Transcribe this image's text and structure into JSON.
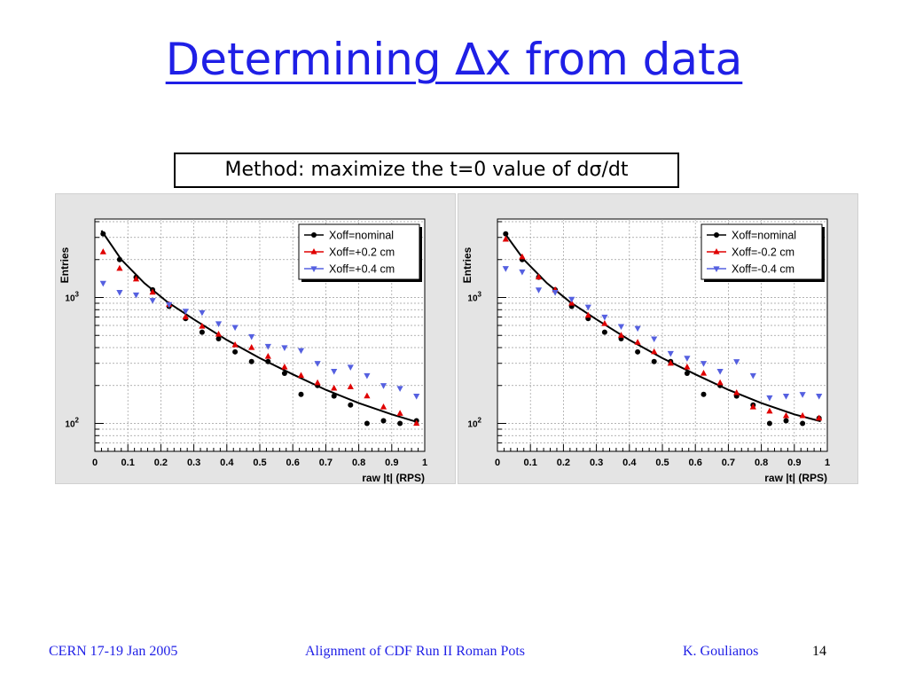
{
  "slide": {
    "title": "Determining ∆x from data",
    "method_box": "Method: maximize the t=0 value of dσ/dt"
  },
  "footer": {
    "left": "CERN 17-19 Jan 2005",
    "center": "Alignment of  CDF Run II Roman Pots",
    "author": "K. Goulianos",
    "page": "14"
  },
  "colors": {
    "title": "#1f1fe6",
    "nominal": "#000000",
    "shift_small": "#e00000",
    "shift_large": "#5560e0",
    "panel_bg": "#e4e4e4"
  },
  "chart_data": [
    {
      "type": "scatter",
      "xlabel": "raw |t| (RPS)",
      "ylabel": "Entries",
      "xlim": [
        0,
        1
      ],
      "ylim": [
        60,
        4200
      ],
      "y_scale": "log",
      "x_ticks": [
        "0",
        "0.1",
        "0.2",
        "0.3",
        "0.4",
        "0.5",
        "0.6",
        "0.7",
        "0.8",
        "0.9",
        "1"
      ],
      "y_ticks": [
        {
          "label": "10",
          "exp": "2",
          "value": 100
        },
        {
          "label": "10",
          "exp": "3",
          "value": 1000
        }
      ],
      "grid": true,
      "legend_position": "top-right",
      "fit_curve": {
        "x": [
          0.02,
          0.08,
          0.15,
          0.22,
          0.3,
          0.4,
          0.5,
          0.6,
          0.7,
          0.8,
          0.9,
          0.98
        ],
        "y": [
          3400,
          2000,
          1300,
          920,
          670,
          460,
          330,
          245,
          185,
          145,
          118,
          102
        ]
      },
      "series": [
        {
          "name": "Xoff=nominal",
          "marker": "circle",
          "color": "#000000",
          "x": [
            0.025,
            0.075,
            0.125,
            0.175,
            0.225,
            0.275,
            0.325,
            0.375,
            0.425,
            0.475,
            0.525,
            0.575,
            0.625,
            0.675,
            0.725,
            0.775,
            0.825,
            0.875,
            0.925,
            0.975
          ],
          "y": [
            3200,
            2000,
            1450,
            1150,
            850,
            680,
            530,
            470,
            370,
            310,
            310,
            250,
            170,
            200,
            165,
            140,
            100,
            105,
            100,
            105
          ]
        },
        {
          "name": "Xoff=+0.2 cm",
          "marker": "triangle-up",
          "color": "#e00000",
          "x": [
            0.025,
            0.075,
            0.125,
            0.175,
            0.225,
            0.275,
            0.325,
            0.375,
            0.425,
            0.475,
            0.525,
            0.575,
            0.625,
            0.675,
            0.725,
            0.775,
            0.825,
            0.875,
            0.925,
            0.975
          ],
          "y": [
            2300,
            1700,
            1400,
            1100,
            880,
            700,
            590,
            510,
            420,
            400,
            340,
            280,
            240,
            210,
            190,
            195,
            165,
            135,
            120,
            100
          ]
        },
        {
          "name": "Xoff=+0.4 cm",
          "marker": "triangle-down",
          "color": "#5560e0",
          "x": [
            0.025,
            0.075,
            0.125,
            0.175,
            0.225,
            0.275,
            0.325,
            0.375,
            0.425,
            0.475,
            0.525,
            0.575,
            0.625,
            0.675,
            0.725,
            0.775,
            0.825,
            0.875,
            0.925,
            0.975
          ],
          "y": [
            1300,
            1100,
            1050,
            950,
            880,
            780,
            760,
            620,
            580,
            490,
            410,
            400,
            380,
            300,
            260,
            280,
            240,
            200,
            190,
            165
          ]
        }
      ]
    },
    {
      "type": "scatter",
      "xlabel": "raw |t| (RPS)",
      "ylabel": "Entries",
      "xlim": [
        0,
        1
      ],
      "ylim": [
        60,
        4200
      ],
      "y_scale": "log",
      "x_ticks": [
        "0",
        "0.1",
        "0.2",
        "0.3",
        "0.4",
        "0.5",
        "0.6",
        "0.7",
        "0.8",
        "0.9",
        "1"
      ],
      "y_ticks": [
        {
          "label": "10",
          "exp": "2",
          "value": 100
        },
        {
          "label": "10",
          "exp": "3",
          "value": 1000
        }
      ],
      "grid": true,
      "legend_position": "top-right",
      "fit_curve": {
        "x": [
          0.02,
          0.08,
          0.15,
          0.22,
          0.3,
          0.4,
          0.5,
          0.6,
          0.7,
          0.8,
          0.9,
          0.98
        ],
        "y": [
          3300,
          2000,
          1300,
          920,
          670,
          460,
          330,
          245,
          185,
          145,
          118,
          104
        ]
      },
      "series": [
        {
          "name": "Xoff=nominal",
          "marker": "circle",
          "color": "#000000",
          "x": [
            0.025,
            0.075,
            0.125,
            0.175,
            0.225,
            0.275,
            0.325,
            0.375,
            0.425,
            0.475,
            0.525,
            0.575,
            0.625,
            0.675,
            0.725,
            0.775,
            0.825,
            0.875,
            0.925,
            0.975
          ],
          "y": [
            3200,
            2000,
            1450,
            1150,
            850,
            680,
            530,
            470,
            370,
            310,
            310,
            250,
            170,
            200,
            165,
            140,
            100,
            105,
            100,
            110
          ]
        },
        {
          "name": "Xoff=-0.2 cm",
          "marker": "triangle-up",
          "color": "#e00000",
          "x": [
            0.025,
            0.075,
            0.125,
            0.175,
            0.225,
            0.275,
            0.325,
            0.375,
            0.425,
            0.475,
            0.525,
            0.575,
            0.625,
            0.675,
            0.725,
            0.775,
            0.825,
            0.875,
            0.925,
            0.975
          ],
          "y": [
            2900,
            2100,
            1450,
            1150,
            900,
            720,
            620,
            500,
            440,
            370,
            300,
            280,
            250,
            210,
            175,
            135,
            125,
            115,
            115,
            110
          ]
        },
        {
          "name": "Xoff=-0.4 cm",
          "marker": "triangle-down",
          "color": "#5560e0",
          "x": [
            0.025,
            0.075,
            0.125,
            0.175,
            0.225,
            0.275,
            0.325,
            0.375,
            0.425,
            0.475,
            0.525,
            0.575,
            0.625,
            0.675,
            0.725,
            0.775,
            0.825,
            0.875,
            0.925,
            0.975
          ],
          "y": [
            1700,
            1600,
            1150,
            1100,
            970,
            840,
            700,
            590,
            570,
            470,
            360,
            330,
            300,
            260,
            310,
            240,
            160,
            165,
            170,
            165
          ]
        }
      ]
    }
  ]
}
